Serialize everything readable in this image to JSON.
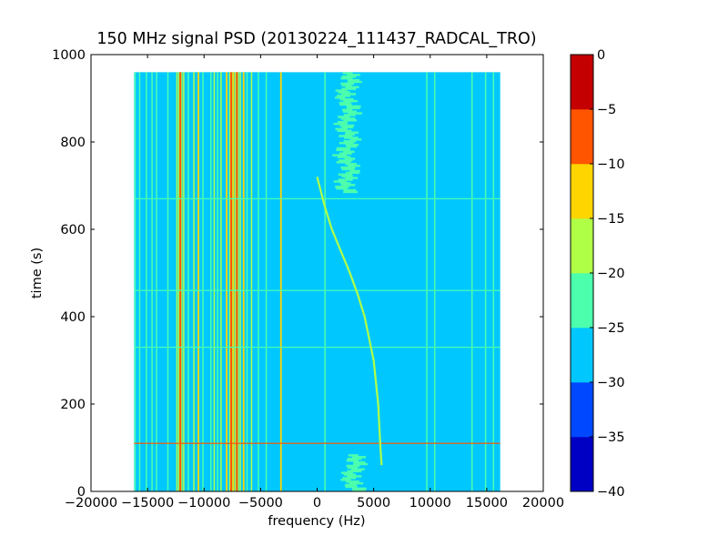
{
  "chart_data": {
    "type": "heatmap",
    "title": "150 MHz signal PSD (20130224_111437_RADCAL_TRO)",
    "xlabel": "frequency (Hz)",
    "ylabel": "time (s)",
    "xlim": [
      -20000,
      20000
    ],
    "ylim": [
      0,
      1000
    ],
    "xticks": [
      -20000,
      -15000,
      -10000,
      -5000,
      0,
      5000,
      10000,
      15000,
      20000
    ],
    "xtick_labels": [
      "−20000",
      "−15000",
      "−10000",
      "−5000",
      "0",
      "5000",
      "10000",
      "15000",
      "20000"
    ],
    "yticks": [
      0,
      200,
      400,
      600,
      800,
      1000
    ],
    "ytick_labels": [
      "0",
      "200",
      "400",
      "600",
      "800",
      "1000"
    ],
    "data_extent": {
      "x": [
        -16200,
        16200
      ],
      "y": [
        0,
        960
      ]
    },
    "background_level_db": -27.5,
    "colorbar": {
      "levels": [
        -40,
        -35,
        -30,
        -25,
        -20,
        -15,
        -10,
        -5,
        0
      ],
      "tick_labels": [
        "−40",
        "−35",
        "−30",
        "−25",
        "−20",
        "−15",
        "−10",
        "−5",
        "0"
      ],
      "colors": [
        "#0000c4",
        "#0048ff",
        "#00c8ff",
        "#4cffad",
        "#b0ff47",
        "#ffd500",
        "#ff5500",
        "#c40000"
      ]
    },
    "vertical_lines": [
      {
        "freq": -16100,
        "level_db": -22
      },
      {
        "freq": -15700,
        "level_db": -22
      },
      {
        "freq": -15100,
        "level_db": -22
      },
      {
        "freq": -14600,
        "level_db": -22
      },
      {
        "freq": -14200,
        "level_db": -22
      },
      {
        "freq": -13200,
        "level_db": -22
      },
      {
        "freq": -12400,
        "level_db": -17
      },
      {
        "freq": -12100,
        "level_db": -7
      },
      {
        "freq": -11800,
        "level_db": -17
      },
      {
        "freq": -11400,
        "level_db": -22
      },
      {
        "freq": -10900,
        "level_db": -17
      },
      {
        "freq": -10500,
        "level_db": -12
      },
      {
        "freq": -10100,
        "level_db": -22
      },
      {
        "freq": -9400,
        "level_db": -22
      },
      {
        "freq": -9100,
        "level_db": -17
      },
      {
        "freq": -8800,
        "level_db": -22
      },
      {
        "freq": -8500,
        "level_db": -17
      },
      {
        "freq": -8000,
        "level_db": -12
      },
      {
        "freq": -7600,
        "level_db": -7
      },
      {
        "freq": -7400,
        "level_db": -12
      },
      {
        "freq": -7100,
        "level_db": -7
      },
      {
        "freq": -6800,
        "level_db": -17
      },
      {
        "freq": -6500,
        "level_db": -12
      },
      {
        "freq": -6200,
        "level_db": -22
      },
      {
        "freq": -5800,
        "level_db": -17
      },
      {
        "freq": -5200,
        "level_db": -22
      },
      {
        "freq": -4500,
        "level_db": -22
      },
      {
        "freq": -3200,
        "level_db": -12
      },
      {
        "freq": 700,
        "level_db": -22
      },
      {
        "freq": 9700,
        "level_db": -22
      },
      {
        "freq": 10400,
        "level_db": -22
      },
      {
        "freq": 13700,
        "level_db": -22
      },
      {
        "freq": 14900,
        "level_db": -22
      },
      {
        "freq": 15600,
        "level_db": -22
      }
    ],
    "drifting_carrier": {
      "level_db": -17,
      "points": [
        {
          "time": 720,
          "freq": 0
        },
        {
          "time": 650,
          "freq": 700
        },
        {
          "time": 600,
          "freq": 1300
        },
        {
          "time": 550,
          "freq": 2100
        },
        {
          "time": 500,
          "freq": 2900
        },
        {
          "time": 450,
          "freq": 3600
        },
        {
          "time": 400,
          "freq": 4200
        },
        {
          "time": 350,
          "freq": 4600
        },
        {
          "time": 300,
          "freq": 5000
        },
        {
          "time": 250,
          "freq": 5200
        },
        {
          "time": 200,
          "freq": 5400
        },
        {
          "time": 150,
          "freq": 5500
        },
        {
          "time": 100,
          "freq": 5600
        },
        {
          "time": 60,
          "freq": 5700
        }
      ]
    },
    "noise_patches": [
      {
        "freq_center": 2700,
        "freq_width": 1600,
        "time_range": [
          685,
          960
        ],
        "level_db": -22
      },
      {
        "freq_center": 3200,
        "freq_width": 1600,
        "time_range": [
          0,
          85
        ],
        "level_db": -22
      }
    ],
    "horizontal_lines": [
      {
        "time": 110,
        "level_db": -7
      },
      {
        "time": 670,
        "level_db": -22
      },
      {
        "time": 460,
        "level_db": -22
      },
      {
        "time": 330,
        "level_db": -22
      }
    ]
  }
}
